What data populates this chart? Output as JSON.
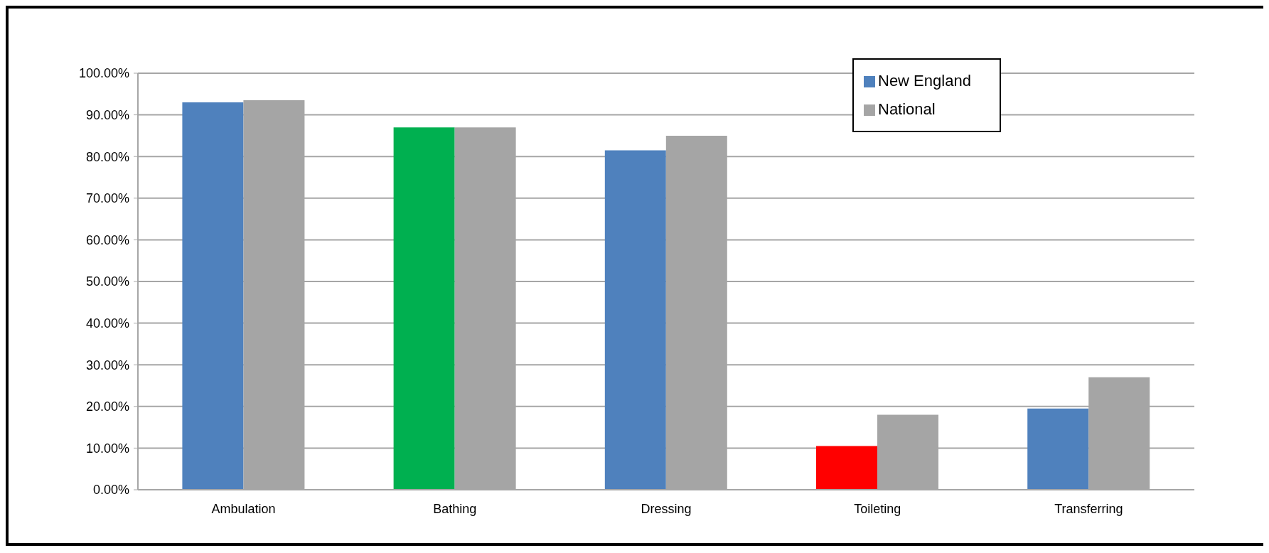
{
  "chart_data": {
    "type": "bar",
    "categories": [
      "Ambulation",
      "Bathing",
      "Dressing",
      "Toileting",
      "Transferring"
    ],
    "series": [
      {
        "name": "New England",
        "color": "#4f81bd",
        "colors": [
          "#4f81bd",
          "#00b050",
          "#4f81bd",
          "#ff0000",
          "#4f81bd"
        ],
        "values": [
          93,
          87,
          81.5,
          10.5,
          19.5
        ]
      },
      {
        "name": "National",
        "color": "#a5a5a5",
        "values": [
          93.5,
          87,
          85,
          18,
          27
        ]
      }
    ],
    "ylim": [
      0,
      100
    ],
    "yticks": [
      {
        "value": 0,
        "label": "0.00%"
      },
      {
        "value": 10,
        "label": "10.00%"
      },
      {
        "value": 20,
        "label": "20.00%"
      },
      {
        "value": 30,
        "label": "30.00%"
      },
      {
        "value": 40,
        "label": "40.00%"
      },
      {
        "value": 50,
        "label": "50.00%"
      },
      {
        "value": 60,
        "label": "60.00%"
      },
      {
        "value": 70,
        "label": "70.00%"
      },
      {
        "value": 80,
        "label": "80.00%"
      },
      {
        "value": 90,
        "label": "90.00%"
      },
      {
        "value": 100,
        "label": "100.00%"
      }
    ],
    "grid": "y",
    "legend": "top right"
  }
}
